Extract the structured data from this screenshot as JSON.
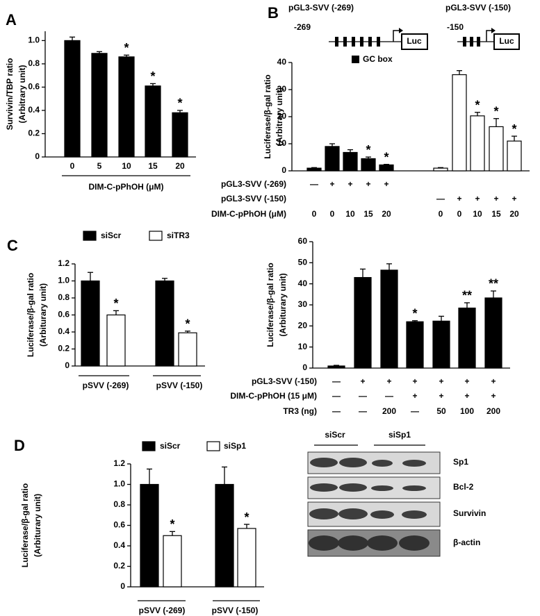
{
  "panel_labels": [
    "A",
    "B",
    "C",
    "D"
  ],
  "chart_data": [
    {
      "type": "bar",
      "categories": [
        "0",
        "5",
        "10",
        "15",
        "20"
      ],
      "values": [
        1.0,
        0.89,
        0.86,
        0.61,
        0.38
      ],
      "errors": [
        0.03,
        0.015,
        0.015,
        0.02,
        0.02
      ],
      "annotations": [
        null,
        null,
        "*",
        "*",
        "*"
      ],
      "color": "#000000",
      "ylim": [
        0,
        1.08
      ],
      "yticks": [
        0,
        0.2,
        0.4,
        0.6,
        0.8,
        {
          "value": 1,
          "label": "1.0"
        }
      ],
      "ylabel": [
        "Survivin/TBP ratio",
        "(Arbitrary unit)"
      ],
      "xlabel": "DIM-C-pPhOH (μM)"
    },
    {
      "type": "bar",
      "diagram": {
        "constructs": [
          {
            "title": "pGL3-SVV (-269)",
            "start": "-269",
            "reporter": "Luc"
          },
          {
            "title": "pGL3-SVV (-150)",
            "start": "-150",
            "reporter": "Luc"
          }
        ],
        "legend": "GC box"
      },
      "groups": [
        {
          "color": "#000000",
          "values": [
            1,
            9,
            6.8,
            4.5,
            2.2
          ],
          "errors": [
            0.2,
            1,
            1,
            0.6,
            0.2
          ],
          "annotations": [
            null,
            null,
            null,
            "*",
            "*"
          ]
        },
        {
          "color": "#ffffff",
          "values": [
            1,
            35.5,
            20.3,
            16.3,
            11
          ],
          "errors": [
            0.2,
            1.5,
            1.3,
            3,
            1.8
          ],
          "annotations": [
            null,
            null,
            "*",
            "*",
            "*"
          ]
        }
      ],
      "ylim": [
        0,
        40
      ],
      "yticks": [
        0,
        10,
        20,
        30,
        40
      ],
      "ylabel": [
        "Luciferase/β-gal ratio",
        "(Arbitrary unit)"
      ],
      "conditions": [
        {
          "label": "pGL3-SVV (-269)",
          "cells": [
            "—",
            "+",
            "+",
            "+",
            "+",
            null,
            null,
            null,
            null,
            null
          ]
        },
        {
          "label": "pGL3-SVV (-150)",
          "cells": [
            null,
            null,
            null,
            null,
            null,
            "—",
            "+",
            "+",
            "+",
            "+"
          ]
        },
        {
          "label": "DIM-C-pPhOH (μM)",
          "cells": [
            "0",
            "0",
            "10",
            "15",
            "20",
            "0",
            "0",
            "10",
            "15",
            "20"
          ]
        }
      ]
    },
    {
      "type": "bar",
      "categories": [
        "pSVV (-269)",
        "pSVV (-150)"
      ],
      "series": [
        {
          "name": "siScr",
          "color": "#000000",
          "values": [
            1.0,
            1.0
          ],
          "errors": [
            0.1,
            0.03
          ],
          "annotations": [
            null,
            null
          ]
        },
        {
          "name": "siTR3",
          "color": "#ffffff",
          "values": [
            0.6,
            0.39
          ],
          "errors": [
            0.05,
            0.02
          ],
          "annotations": [
            "*",
            "*"
          ]
        }
      ],
      "ylim": [
        0,
        1.2
      ],
      "yticks": [
        0,
        0.2,
        0.4,
        0.6,
        0.8,
        {
          "value": 1,
          "label": "1.0"
        },
        1.2
      ],
      "ylabel": [
        "Luciferase/β-gal ratio",
        "(Arbiturary unit)"
      ]
    },
    {
      "type": "bar",
      "values": [
        1,
        43,
        46.5,
        22,
        22.3,
        28.5,
        33.3
      ],
      "errors": [
        0.3,
        4,
        3,
        0.5,
        2.3,
        2.5,
        3.3
      ],
      "annotations": [
        null,
        null,
        null,
        "*",
        null,
        "**",
        "**"
      ],
      "color": "#000000",
      "ylim": [
        0,
        60
      ],
      "yticks": [
        0,
        10,
        20,
        30,
        40,
        50,
        60
      ],
      "ylabel": [
        "Luciferase/β-gal ratio",
        "(Arbiturary unit)"
      ],
      "conditions": [
        {
          "label": "pGL3-SVV (-150)",
          "cells": [
            "—",
            "+",
            "+",
            "+",
            "+",
            "+",
            "+"
          ]
        },
        {
          "label": "DIM-C-pPhOH (15 μM)",
          "cells": [
            "—",
            "—",
            "—",
            "+",
            "+",
            "+",
            "+"
          ]
        },
        {
          "label": "TR3 (ng)",
          "cells": [
            "—",
            "—",
            "200",
            "—",
            "50",
            "100",
            "200"
          ]
        }
      ]
    },
    {
      "type": "bar",
      "categories": [
        "pSVV (-269)",
        "pSVV (-150)"
      ],
      "series": [
        {
          "name": "siScr",
          "color": "#000000",
          "values": [
            1.0,
            1.0
          ],
          "errors": [
            0.15,
            0.17
          ],
          "annotations": [
            null,
            null
          ]
        },
        {
          "name": "siSp1",
          "color": "#ffffff",
          "values": [
            0.5,
            0.57
          ],
          "errors": [
            0.04,
            0.04
          ],
          "annotations": [
            "*",
            "*"
          ]
        }
      ],
      "ylim": [
        0,
        1.2
      ],
      "yticks": [
        0,
        0.2,
        0.4,
        0.6,
        0.8,
        {
          "value": 1,
          "label": "1.0"
        },
        1.2
      ],
      "ylabel": [
        "Luciferase/β-gal ratio",
        "(Arbiturary unit)"
      ]
    }
  ],
  "blot": {
    "lanes": [
      "siScr",
      "siSp1"
    ],
    "bands": [
      "Sp1",
      "Bcl-2",
      "Survivin",
      "β-actin"
    ]
  }
}
